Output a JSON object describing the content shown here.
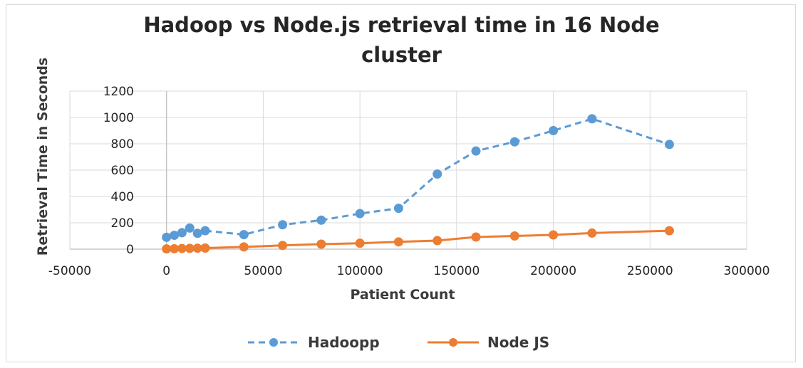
{
  "chart_data": {
    "type": "line",
    "title_line1": "Hadoop vs Node.js retrieval time in 16 Node",
    "title_line2": "cluster",
    "xlabel": "Patient Count",
    "ylabel": "Retrieval Time in Seconds",
    "xlim": [
      -50000,
      300000
    ],
    "ylim": [
      0,
      1200
    ],
    "x_ticks": [
      -50000,
      0,
      50000,
      100000,
      150000,
      200000,
      250000,
      300000
    ],
    "y_ticks": [
      0,
      200,
      400,
      600,
      800,
      1000,
      1200
    ],
    "grid": true,
    "legend_position": "bottom",
    "series": [
      {
        "name": "Hadoopp",
        "color": "#5b9bd5",
        "line_style": "dashed",
        "points": [
          [
            0,
            90
          ],
          [
            4000,
            105
          ],
          [
            8000,
            125
          ],
          [
            12000,
            160
          ],
          [
            16000,
            120
          ],
          [
            20000,
            140
          ],
          [
            40000,
            110
          ],
          [
            60000,
            185
          ],
          [
            80000,
            220
          ],
          [
            100000,
            270
          ],
          [
            120000,
            310
          ],
          [
            140000,
            570
          ],
          [
            160000,
            745
          ],
          [
            180000,
            815
          ],
          [
            200000,
            900
          ],
          [
            220000,
            990
          ],
          [
            260000,
            795
          ]
        ]
      },
      {
        "name": "Node JS",
        "color": "#ed7d31",
        "line_style": "solid",
        "points": [
          [
            0,
            2
          ],
          [
            4000,
            3
          ],
          [
            8000,
            5
          ],
          [
            12000,
            6
          ],
          [
            16000,
            7
          ],
          [
            20000,
            8
          ],
          [
            40000,
            17
          ],
          [
            60000,
            28
          ],
          [
            80000,
            38
          ],
          [
            100000,
            45
          ],
          [
            120000,
            55
          ],
          [
            140000,
            65
          ],
          [
            160000,
            92
          ],
          [
            180000,
            100
          ],
          [
            200000,
            108
          ],
          [
            220000,
            122
          ],
          [
            260000,
            140
          ]
        ]
      }
    ]
  }
}
